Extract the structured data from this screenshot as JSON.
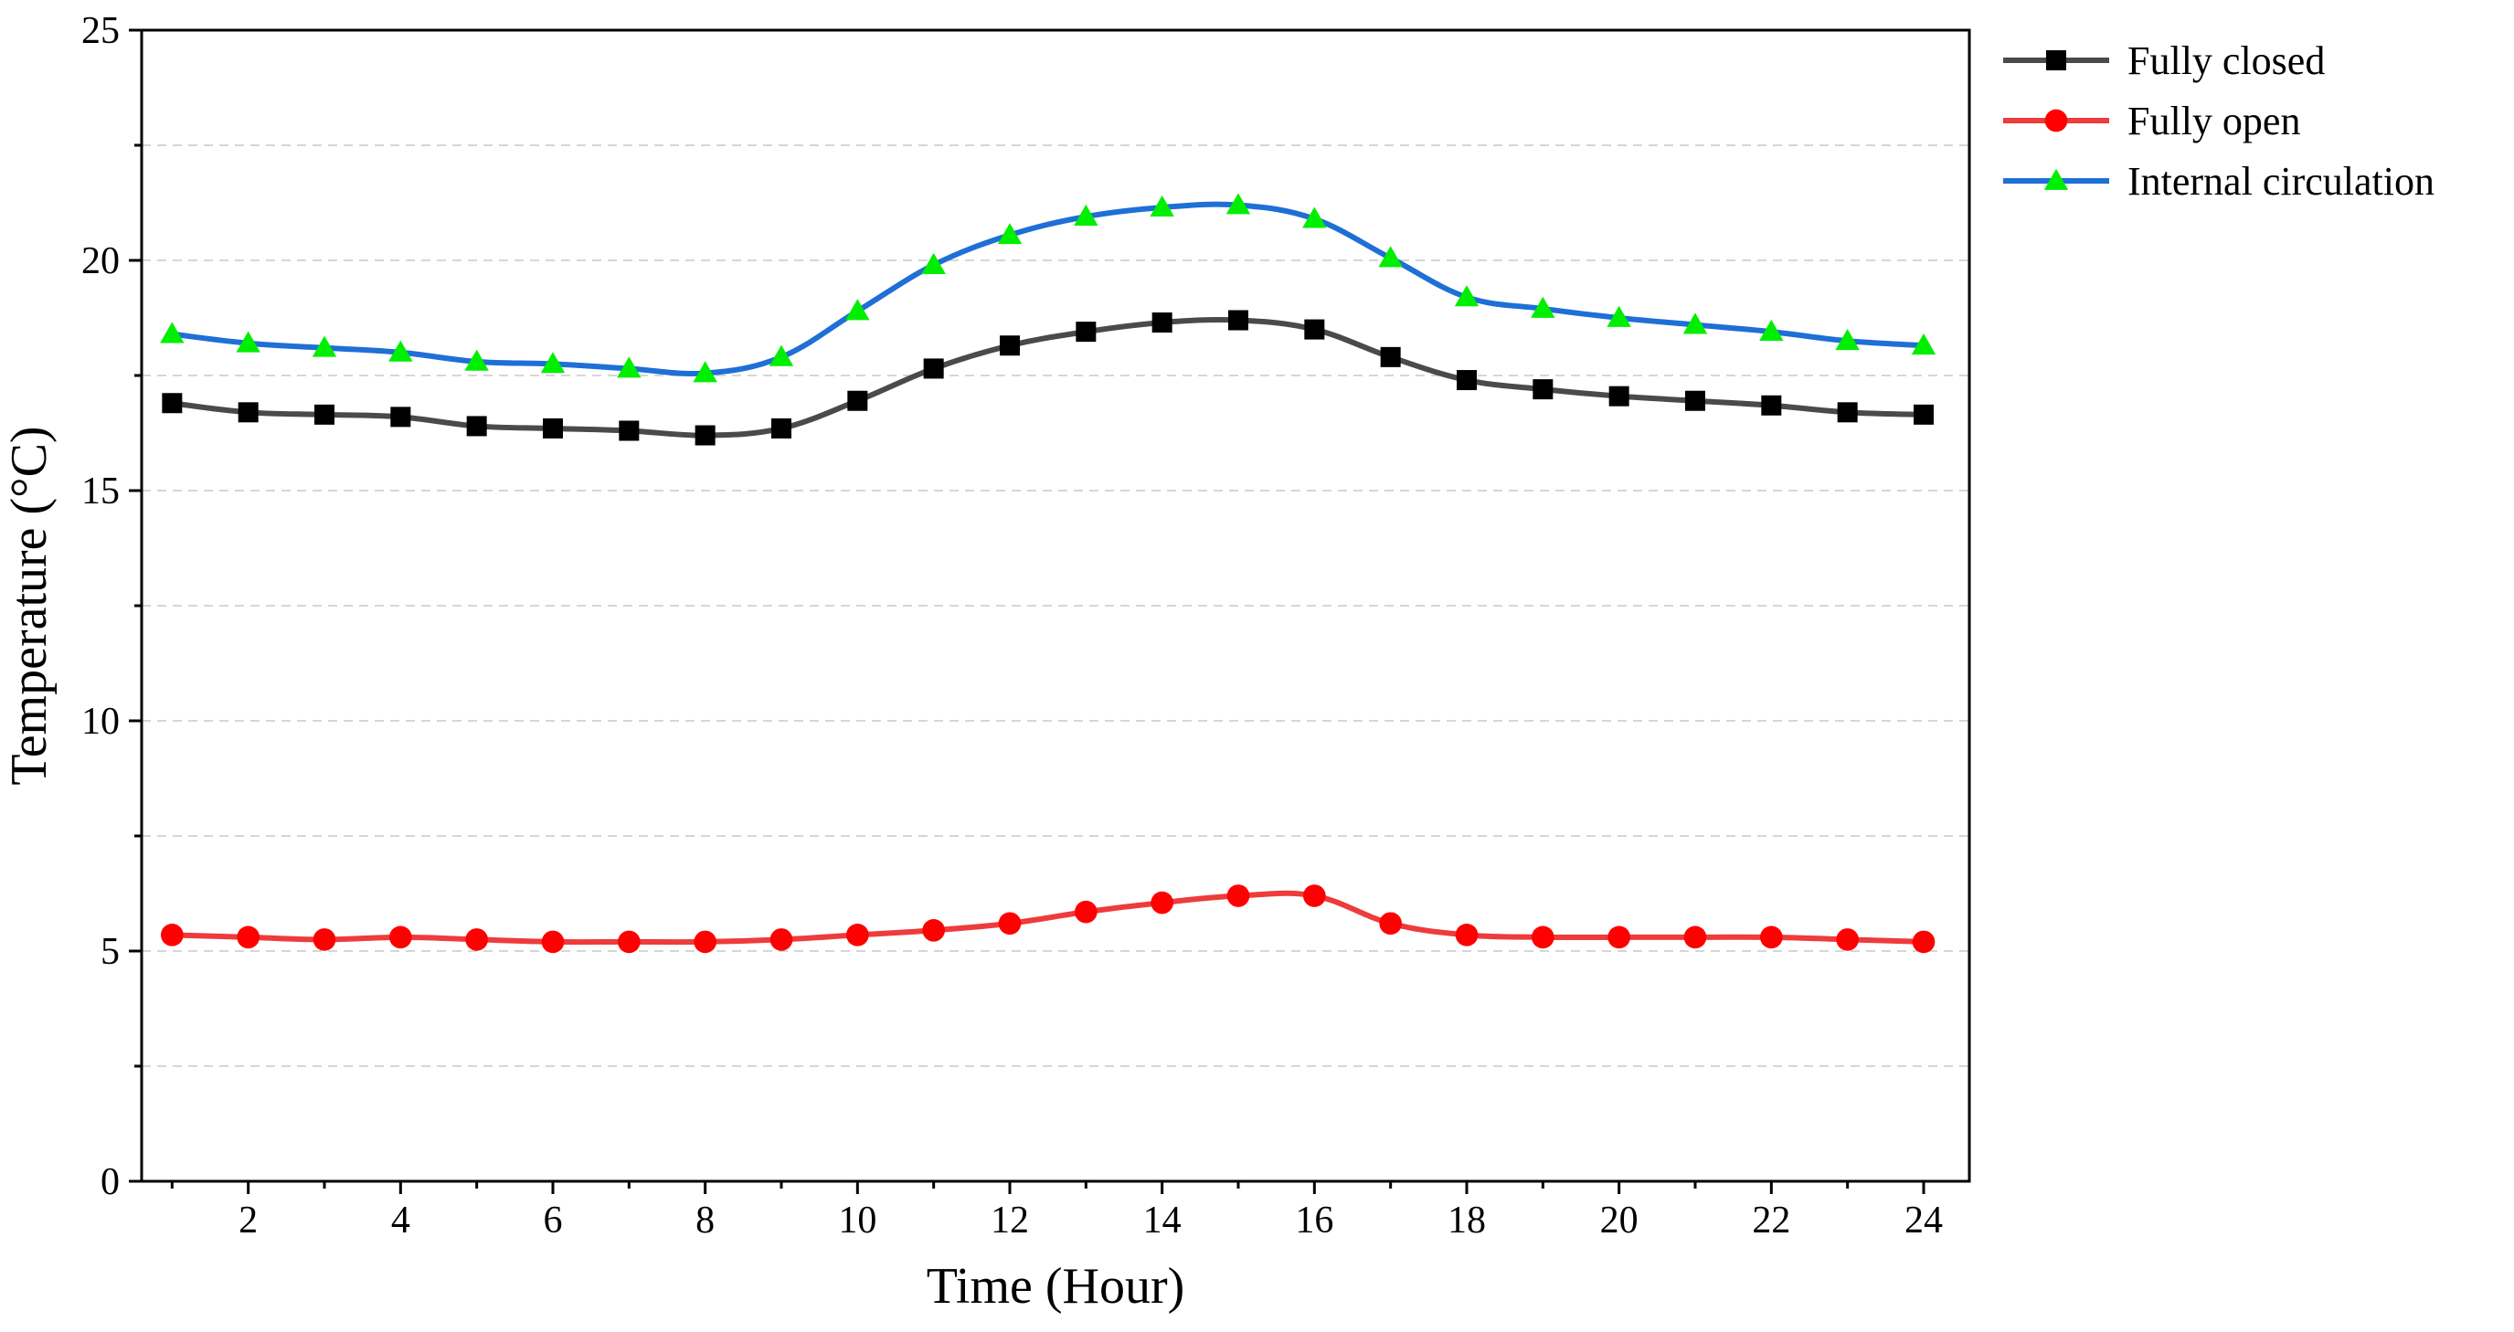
{
  "chart_data": {
    "type": "line",
    "title": "",
    "xlabel": "Time (Hour)",
    "ylabel": "Temperature (°C)",
    "xlim": [
      0.6,
      24.6
    ],
    "ylim": [
      0,
      25
    ],
    "x_ticks": [
      2,
      4,
      6,
      8,
      10,
      12,
      14,
      16,
      18,
      20,
      22,
      24
    ],
    "y_ticks": [
      0,
      5,
      10,
      15,
      20,
      25
    ],
    "grid": true,
    "legend_position": "outside-top-right",
    "x": [
      1,
      2,
      3,
      4,
      5,
      6,
      7,
      8,
      9,
      10,
      11,
      12,
      13,
      14,
      15,
      16,
      17,
      18,
      19,
      20,
      21,
      22,
      23,
      24
    ],
    "series": [
      {
        "name": "Fully closed",
        "color": "#4a4a4a",
        "marker": "square",
        "marker_color": "#000000",
        "values": [
          16.9,
          16.7,
          16.65,
          16.6,
          16.4,
          16.35,
          16.3,
          16.2,
          16.35,
          16.95,
          17.65,
          18.15,
          18.45,
          18.65,
          18.7,
          18.5,
          17.9,
          17.4,
          17.2,
          17.05,
          16.95,
          16.85,
          16.7,
          16.65
        ]
      },
      {
        "name": "Fully open",
        "color": "#ee3b3b",
        "marker": "circle",
        "marker_color": "#ff0000",
        "values": [
          5.35,
          5.3,
          5.25,
          5.3,
          5.25,
          5.2,
          5.2,
          5.2,
          5.25,
          5.35,
          5.45,
          5.6,
          5.85,
          6.05,
          6.2,
          6.2,
          5.6,
          5.35,
          5.3,
          5.3,
          5.3,
          5.3,
          5.25,
          5.2
        ]
      },
      {
        "name": "Internal circulation",
        "color": "#1e6fd6",
        "marker": "triangle",
        "marker_color": "#00ee00",
        "values": [
          18.4,
          18.2,
          18.1,
          18.0,
          17.8,
          17.75,
          17.65,
          17.55,
          17.9,
          18.9,
          19.9,
          20.55,
          20.95,
          21.15,
          21.2,
          20.9,
          20.05,
          19.2,
          18.95,
          18.75,
          18.6,
          18.45,
          18.25,
          18.15
        ]
      }
    ]
  }
}
